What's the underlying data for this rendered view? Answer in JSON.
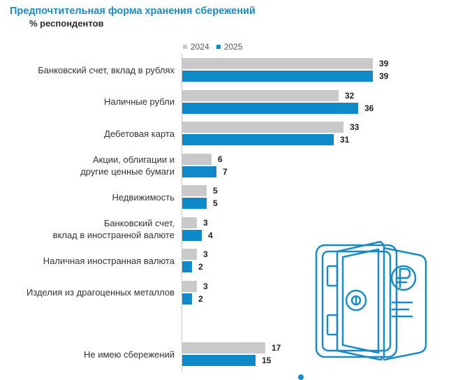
{
  "title": "Предпочтительная форма хранения сбережений",
  "subtitle": "% респондентов",
  "legend": [
    {
      "label": "2024",
      "color": "#c9c9cc"
    },
    {
      "label": "2025",
      "color": "#0f8ac8"
    }
  ],
  "icon": "ruble-safe-icon",
  "chart_data": {
    "type": "bar",
    "orientation": "horizontal",
    "title": "Предпочтительная форма хранения сбережений",
    "subtitle": "% респондентов",
    "legend_position": "top",
    "grid": false,
    "xlim": [
      0,
      50
    ],
    "categories": [
      "Банковский счет, вклад в рублях",
      "Наличные рубли",
      "Дебетовая карта",
      "Акции, облигации и\nдругие ценные бумаги",
      "Недвижимость",
      "Банковский счет,\nвклад в иностранной валюте",
      "Наличная иностранная валюта",
      "Изделия из драгоценных металлов",
      "Не имею сбережений"
    ],
    "series": [
      {
        "name": "2024",
        "color": "#c9c9cc",
        "values": [
          39,
          32,
          33,
          6,
          5,
          3,
          3,
          3,
          17
        ]
      },
      {
        "name": "2025",
        "color": "#0f8ac8",
        "values": [
          39,
          36,
          31,
          7,
          5,
          4,
          2,
          2,
          15
        ]
      }
    ]
  }
}
